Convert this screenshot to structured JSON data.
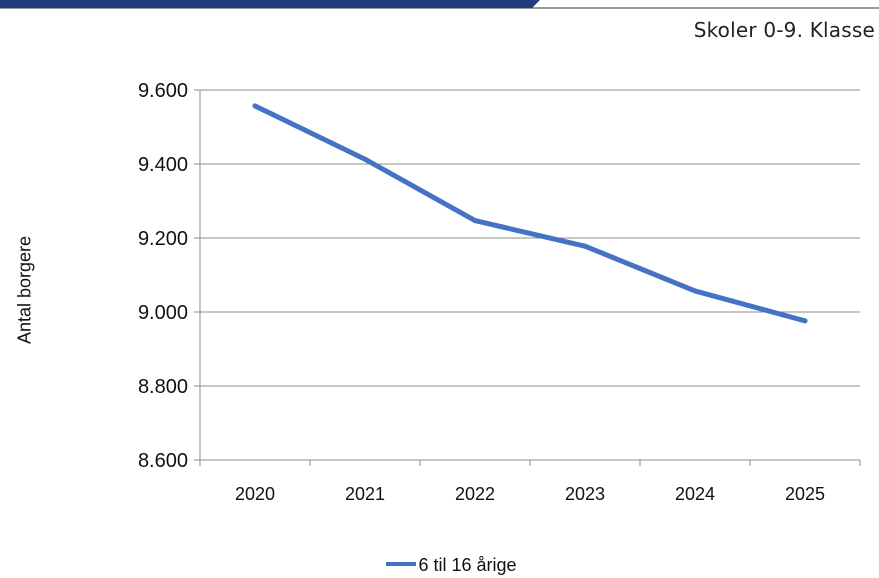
{
  "colors": {
    "series": "#4472C4",
    "header_bar": "#1F3E7A",
    "grid": "#8C8C8C",
    "axis": "#8C8C8C"
  },
  "caption": "Skoler 0-9. Klasse",
  "chart_data": {
    "type": "line",
    "title": "",
    "xlabel": "",
    "ylabel": "Antal borgere",
    "categories": [
      "2020",
      "2021",
      "2022",
      "2023",
      "2024",
      "2025"
    ],
    "series": [
      {
        "name": "6 til 16 årige",
        "values": [
          9557,
          9413,
          9247,
          9178,
          9057,
          8976
        ]
      }
    ],
    "ylim": [
      8600,
      9600
    ],
    "yticks": [
      8600,
      8800,
      9000,
      9200,
      9400,
      9600
    ],
    "ytick_labels": [
      "8.600",
      "8.800",
      "9.000",
      "9.200",
      "9.400",
      "9.600"
    ],
    "grid": true,
    "legend_position": "bottom"
  }
}
